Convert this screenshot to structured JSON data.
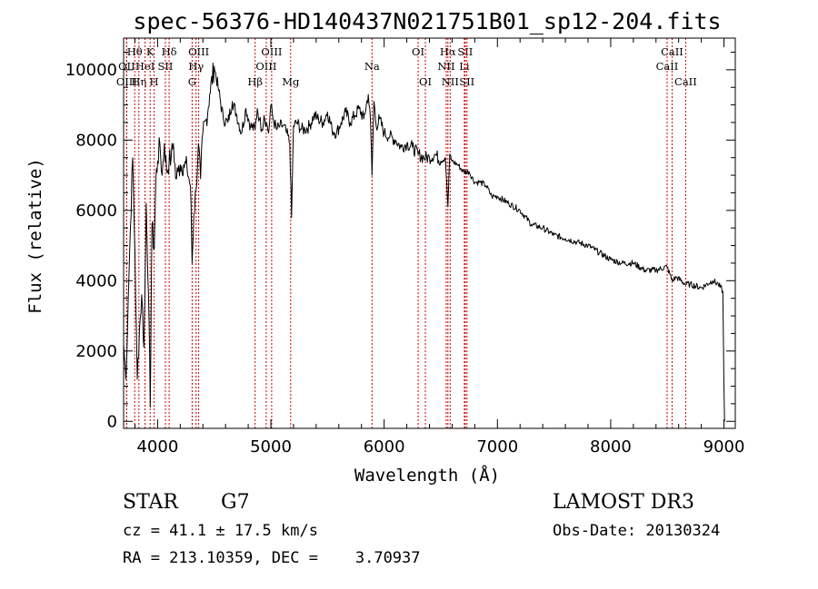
{
  "chart_data": {
    "type": "line",
    "title": "spec-56376-HD140437N021751B01_sp12-204.fits",
    "xlabel": "Wavelength (Å)",
    "ylabel": "Flux (relative)",
    "xlim": [
      3700,
      9100
    ],
    "ylim": [
      -200,
      10900
    ],
    "x_ticks": [
      4000,
      5000,
      6000,
      7000,
      8000,
      9000
    ],
    "x_tick_labels": [
      "4000",
      "5000",
      "6000",
      "7000",
      "8000",
      "9000"
    ],
    "y_ticks": [
      0,
      2000,
      4000,
      6000,
      8000,
      10000
    ],
    "y_tick_labels": [
      "0",
      "2000",
      "4000",
      "6000",
      "8000",
      "10000"
    ],
    "series": [
      {
        "name": "spectrum",
        "x": [
          3700,
          3720,
          3740,
          3760,
          3780,
          3800,
          3820,
          3840,
          3860,
          3880,
          3900,
          3920,
          3935,
          3950,
          3970,
          3985,
          4000,
          4020,
          4040,
          4060,
          4080,
          4102,
          4120,
          4140,
          4160,
          4180,
          4200,
          4230,
          4260,
          4290,
          4305,
          4320,
          4340,
          4360,
          4380,
          4400,
          4430,
          4460,
          4500,
          4540,
          4580,
          4620,
          4660,
          4700,
          4740,
          4780,
          4820,
          4861,
          4880,
          4900,
          4920,
          4940,
          4960,
          4980,
          5000,
          5020,
          5050,
          5080,
          5110,
          5140,
          5167,
          5183,
          5200,
          5230,
          5270,
          5300,
          5340,
          5380,
          5420,
          5460,
          5500,
          5540,
          5580,
          5620,
          5660,
          5700,
          5740,
          5780,
          5820,
          5860,
          5880,
          5893,
          5910,
          5930,
          5960,
          6000,
          6050,
          6100,
          6150,
          6200,
          6250,
          6300,
          6350,
          6400,
          6450,
          6500,
          6540,
          6563,
          6580,
          6600,
          6650,
          6700,
          6750,
          6800,
          6850,
          6900,
          6950,
          7000,
          7100,
          7200,
          7300,
          7400,
          7500,
          7600,
          7700,
          7800,
          7900,
          8000,
          8100,
          8200,
          8300,
          8400,
          8498,
          8542,
          8580,
          8662,
          8700,
          8800,
          8900,
          8950,
          8990,
          9000,
          9005
        ],
        "values": [
          2200,
          1200,
          3400,
          5500,
          7500,
          4800,
          1200,
          2600,
          3600,
          2100,
          6200,
          3600,
          400,
          5600,
          4900,
          6900,
          7400,
          7900,
          7000,
          7900,
          7100,
          7400,
          7500,
          7900,
          6900,
          7100,
          7300,
          7300,
          7200,
          6700,
          4500,
          5900,
          6600,
          7900,
          6900,
          8200,
          8600,
          9300,
          10100,
          9400,
          8600,
          8500,
          9100,
          8700,
          8200,
          8900,
          8400,
          8300,
          8900,
          8600,
          8300,
          8700,
          8500,
          8200,
          9000,
          8600,
          8300,
          8400,
          8400,
          8200,
          7900,
          5800,
          8400,
          8500,
          8300,
          8300,
          8400,
          8700,
          8600,
          8500,
          8800,
          8300,
          8200,
          8500,
          8800,
          8500,
          8700,
          8900,
          8600,
          9300,
          8500,
          7000,
          9100,
          8400,
          8600,
          8200,
          8100,
          8000,
          7800,
          7900,
          7800,
          7600,
          7500,
          7500,
          7600,
          7400,
          7500,
          6100,
          7600,
          7400,
          7300,
          7100,
          7100,
          6800,
          6800,
          6700,
          6400,
          6400,
          6200,
          6000,
          5600,
          5500,
          5300,
          5200,
          5100,
          5000,
          4800,
          4600,
          4500,
          4500,
          4300,
          4300,
          4400,
          4000,
          4100,
          3900,
          3900,
          3800,
          4000,
          3900,
          3700,
          1000,
          0
        ]
      }
    ],
    "line_markers": [
      {
        "label": "Hθ",
        "wl": 3798,
        "row": 1
      },
      {
        "label": "OII",
        "wl": 3727,
        "row": 2
      },
      {
        "label": "OIII",
        "wl": 3727,
        "row": 3
      },
      {
        "label": "K",
        "wl": 3934,
        "row": 1
      },
      {
        "label": "H",
        "wl": 3969,
        "row": 3
      },
      {
        "label": "Hη",
        "wl": 3835,
        "row": 3
      },
      {
        "label": "HeI",
        "wl": 3889,
        "row": 2
      },
      {
        "label": "SII",
        "wl": 4069,
        "row": 2
      },
      {
        "label": "Hδ",
        "wl": 4102,
        "row": 1
      },
      {
        "label": "OIII",
        "wl": 4363,
        "row": 1
      },
      {
        "label": "Hγ",
        "wl": 4340,
        "row": 2
      },
      {
        "label": "G",
        "wl": 4305,
        "row": 3
      },
      {
        "label": "Hβ",
        "wl": 4861,
        "row": 3
      },
      {
        "label": "OIII",
        "wl": 5007,
        "row": 1
      },
      {
        "label": "OIII",
        "wl": 4959,
        "row": 2
      },
      {
        "label": "Mg",
        "wl": 5175,
        "row": 3
      },
      {
        "label": "Na",
        "wl": 5893,
        "row": 2
      },
      {
        "label": "OI",
        "wl": 6300,
        "row": 1
      },
      {
        "label": "OI",
        "wl": 6364,
        "row": 3
      },
      {
        "label": "Hα",
        "wl": 6563,
        "row": 1
      },
      {
        "label": "NII",
        "wl": 6548,
        "row": 2
      },
      {
        "label": "NII",
        "wl": 6583,
        "row": 3
      },
      {
        "label": "SII",
        "wl": 6716,
        "row": 1
      },
      {
        "label": "Li",
        "wl": 6708,
        "row": 2
      },
      {
        "label": "SII",
        "wl": 6731,
        "row": 3
      },
      {
        "label": "CaII",
        "wl": 8542,
        "row": 1
      },
      {
        "label": "CaII",
        "wl": 8498,
        "row": 2
      },
      {
        "label": "CaII",
        "wl": 8662,
        "row": 3
      }
    ]
  },
  "info": {
    "object_class": "STAR",
    "subclass": "G7",
    "survey": "LAMOST DR3",
    "cz_line": "cz = 41.1 ± 17.5 km/s",
    "obs_date": "Obs-Date: 20130324",
    "radec": "RA = 213.10359, DEC =    3.70937"
  },
  "colors": {
    "line_marker": "#cc0000",
    "spectrum": "#000000"
  }
}
